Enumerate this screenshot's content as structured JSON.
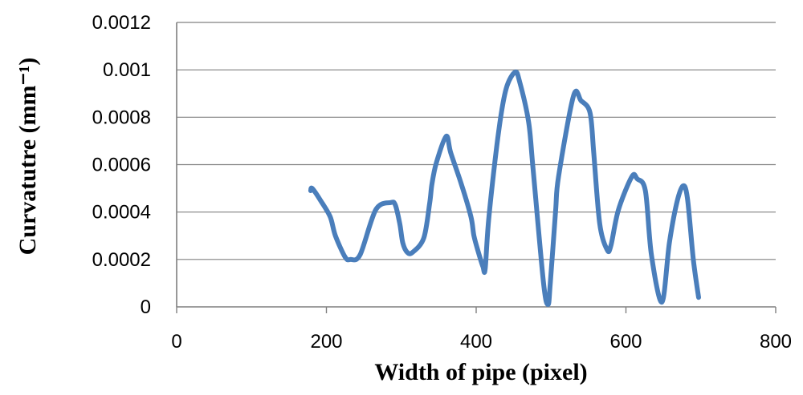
{
  "chart_data": {
    "type": "line",
    "xlabel": "Width of pipe (pixel)",
    "ylabel": "Curvatutre  (mm⁻¹)",
    "xlim": [
      0,
      800
    ],
    "ylim": [
      0,
      0.0012
    ],
    "x_ticks": [
      0,
      200,
      400,
      600,
      800
    ],
    "x_tick_labels": [
      "0",
      "200",
      "400",
      "600",
      "800"
    ],
    "y_ticks": [
      0,
      0.0002,
      0.0004,
      0.0006,
      0.0008,
      0.001,
      0.0012
    ],
    "y_tick_labels": [
      "0",
      "0.0002",
      "0.0004",
      "0.0006",
      "0.0008",
      "0.001",
      "0.0012"
    ],
    "grid": "horizontal",
    "series_color": "#4a7ebb",
    "series": [
      {
        "x": [
          179,
          181,
          192,
          205,
          212,
          225,
          232,
          245,
          266,
          286,
          292,
          298,
          302,
          308,
          315,
          330,
          338,
          341,
          347,
          360,
          366,
          380,
          393,
          397,
          403,
          409,
          412,
          417,
          430,
          440,
          452,
          458,
          470,
          476,
          490,
          496,
          499,
          506,
          510,
          530,
          540,
          552,
          557,
          565,
          575,
          580,
          590,
          608,
          615,
          626,
          634,
          648,
          658,
          668,
          676,
          682,
          690,
          697
        ],
        "y": [
          0.00049,
          0.0005,
          0.00045,
          0.00038,
          0.0003,
          0.00021,
          0.0002,
          0.00022,
          0.00041,
          0.00044,
          0.00043,
          0.00035,
          0.00027,
          0.00023,
          0.00023,
          0.00029,
          0.00044,
          0.00052,
          0.00061,
          0.00072,
          0.00065,
          0.00052,
          0.00038,
          0.0003,
          0.00023,
          0.00017,
          0.00016,
          0.00038,
          0.00074,
          0.00092,
          0.00099,
          0.00095,
          0.00078,
          0.00058,
          0.0001,
          1e-05,
          0.0001,
          0.0004,
          0.00055,
          0.00089,
          0.00087,
          0.00082,
          0.00065,
          0.00035,
          0.00024,
          0.00026,
          0.00041,
          0.00055,
          0.00054,
          0.00049,
          0.00022,
          2e-05,
          0.00027,
          0.00044,
          0.00051,
          0.00046,
          0.0002,
          4e-05
        ]
      }
    ]
  }
}
